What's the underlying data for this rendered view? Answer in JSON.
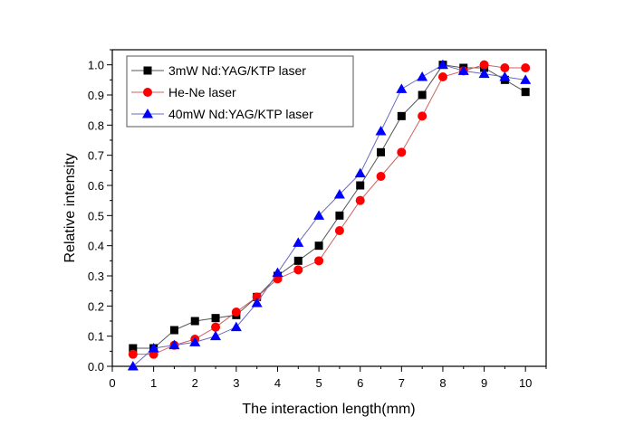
{
  "chart_data": {
    "type": "line",
    "title": "",
    "xlabel": "The interaction length(mm)",
    "ylabel": "Relative intensity",
    "xlim": [
      0,
      10.5
    ],
    "ylim": [
      0,
      1.05
    ],
    "xticks": [
      "0",
      "1",
      "2",
      "3",
      "4",
      "5",
      "6",
      "7",
      "8",
      "9",
      "10"
    ],
    "yticks": [
      "0.0",
      "0.1",
      "0.2",
      "0.3",
      "0.4",
      "0.5",
      "0.6",
      "0.7",
      "0.8",
      "0.9",
      "1.0"
    ],
    "grid": false,
    "legend_position": "top-left",
    "x": [
      0.5,
      1,
      1.5,
      2,
      2.5,
      3,
      3.5,
      4,
      4.5,
      5,
      5.5,
      6,
      6.5,
      7,
      7.5,
      8,
      8.5,
      9,
      9.5,
      10
    ],
    "series": [
      {
        "name": "3mW Nd:YAG/KTP laser",
        "marker": "square",
        "color": "#000000",
        "line_color": "#555555",
        "values": [
          0.06,
          0.06,
          0.12,
          0.15,
          0.16,
          0.17,
          0.23,
          0.3,
          0.35,
          0.4,
          0.5,
          0.6,
          0.71,
          0.83,
          0.9,
          1.0,
          0.99,
          0.99,
          0.95,
          0.91
        ]
      },
      {
        "name": "He-Ne laser",
        "marker": "circle",
        "color": "#ff0000",
        "line_color": "#d06060",
        "values": [
          0.04,
          0.04,
          0.07,
          0.09,
          0.13,
          0.18,
          0.23,
          0.29,
          0.32,
          0.35,
          0.45,
          0.55,
          0.63,
          0.71,
          0.83,
          0.96,
          0.98,
          1.0,
          0.99,
          0.99
        ]
      },
      {
        "name": "40mW Nd:YAG/KTP laser",
        "marker": "triangle",
        "color": "#0000ff",
        "line_color": "#6a6ac0",
        "values": [
          0.0,
          0.06,
          0.07,
          0.08,
          0.1,
          0.13,
          0.21,
          0.31,
          0.41,
          0.5,
          0.57,
          0.64,
          0.78,
          0.92,
          0.96,
          1.0,
          0.98,
          0.97,
          0.96,
          0.95
        ]
      }
    ]
  }
}
